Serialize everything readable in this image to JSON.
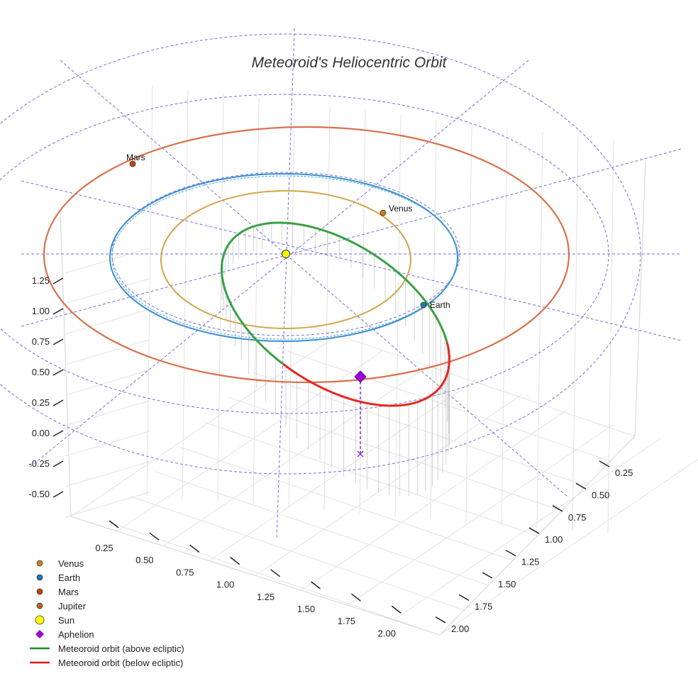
{
  "chart_data": {
    "type": "3d-orbit-plot",
    "title": "Meteoroid's Heliocentric Orbit",
    "z_ticks": [
      "1.25",
      "1.00",
      "0.75",
      "0.50",
      "0.25",
      "0.00",
      "-0.25",
      "-0.50"
    ],
    "x_ticks": [
      "0.25",
      "0.50",
      "0.75",
      "1.00",
      "1.25",
      "1.50",
      "1.75",
      "2.00"
    ],
    "y_ticks": [
      "0.25",
      "0.50",
      "0.75",
      "1.00",
      "1.25",
      "1.50",
      "1.75",
      "2.00"
    ],
    "orbits": [
      {
        "name": "Venus",
        "radius_au": 0.72
      },
      {
        "name": "Earth",
        "radius_au": 1.0
      },
      {
        "name": "Mars",
        "radius_au": 1.52
      }
    ],
    "planet_labels": [
      {
        "name": "Mars"
      },
      {
        "name": "Venus"
      },
      {
        "name": "Earth"
      }
    ],
    "legend": [
      {
        "label": "Venus",
        "marker": "dot",
        "color": "#c8811a"
      },
      {
        "label": "Earth",
        "marker": "dot",
        "color": "#1f77b4"
      },
      {
        "label": "Mars",
        "marker": "dot",
        "color": "#c1440e"
      },
      {
        "label": "Jupiter",
        "marker": "dot",
        "color": "#b5651d"
      },
      {
        "label": "Sun",
        "marker": "big-dot",
        "color": "#ffff00"
      },
      {
        "label": "Aphelion",
        "marker": "diamond",
        "color": "#9b00d3"
      },
      {
        "label": "Meteoroid orbit (above ecliptic)",
        "marker": "line",
        "color": "#1a8f1a"
      },
      {
        "label": "Meteoroid orbit (below ecliptic)",
        "marker": "line",
        "color": "#e31a1c"
      }
    ]
  },
  "colors": {
    "venus_orbit": "#d4a44a",
    "earth_orbit": "#3d8fd0",
    "mars_orbit": "#d9714a",
    "grid_dashed": "#5555e0",
    "green_orbit": "#3aa043",
    "red_orbit": "#e8261c"
  }
}
